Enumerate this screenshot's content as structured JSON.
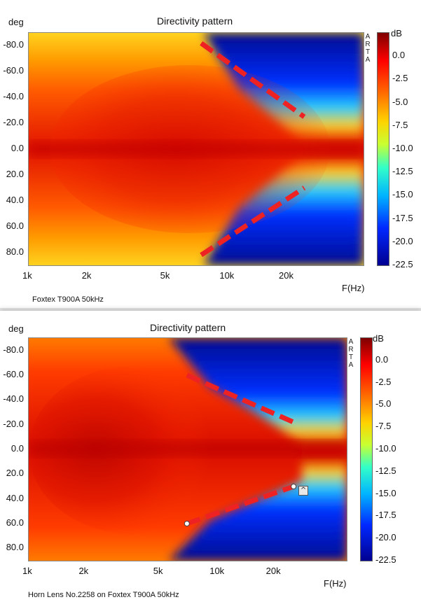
{
  "chart_data": [
    {
      "type": "heatmap",
      "title": "Directivity pattern",
      "ylabel": "deg",
      "xlabel": "F(Hz)",
      "colorbar_label": "dB",
      "watermark": [
        "A",
        "R",
        "T",
        "A"
      ],
      "caption": "Foxtex T900A 50kHz",
      "y_ticks": [
        "-80.0",
        "-60.0",
        "-40.0",
        "-20.0",
        "0.0",
        "20.0",
        "40.0",
        "60.0",
        "80.0"
      ],
      "x_ticks": [
        "1k",
        "2k",
        "5k",
        "10k",
        "20k"
      ],
      "x_tick_values": [
        1000,
        2000,
        5000,
        10000,
        20000
      ],
      "colorbar_ticks": [
        "0.0",
        "-2.5",
        "-5.0",
        "-7.5",
        "-10.0",
        "-12.5",
        "-15.0",
        "-17.5",
        "-20.0",
        "-22.5"
      ],
      "x_range": [
        1000,
        50000
      ],
      "y_range": [
        -90,
        90
      ],
      "z_range": [
        -22.5,
        2.5
      ],
      "annotations": [
        {
          "type": "dashed-line",
          "color": "#ee2222",
          "from": {
            "x": 7500,
            "y": -82
          },
          "to": {
            "x": 25000,
            "y": -25
          }
        },
        {
          "type": "dashed-line",
          "color": "#ee2222",
          "from": {
            "x": 7500,
            "y": 82
          },
          "to": {
            "x": 25000,
            "y": 30
          }
        }
      ]
    },
    {
      "type": "heatmap",
      "title": "Directivity pattern",
      "ylabel": "deg",
      "xlabel": "F(Hz)",
      "colorbar_label": "dB",
      "watermark": [
        "A",
        "R",
        "T",
        "A"
      ],
      "caption": "Horn Lens No.2258 on Foxtex T900A 50kHz",
      "y_ticks": [
        "-80.0",
        "-60.0",
        "-40.0",
        "-20.0",
        "0.0",
        "20.0",
        "40.0",
        "60.0",
        "80.0"
      ],
      "x_ticks": [
        "1k",
        "2k",
        "5k",
        "10k",
        "20k"
      ],
      "x_tick_values": [
        1000,
        2000,
        5000,
        10000,
        20000
      ],
      "colorbar_ticks": [
        "0.0",
        "-2.5",
        "-5.0",
        "-7.5",
        "-10.0",
        "-12.5",
        "-15.0",
        "-17.5",
        "-20.0",
        "-22.5"
      ],
      "x_range": [
        1000,
        50000
      ],
      "y_range": [
        -90,
        90
      ],
      "z_range": [
        -22.5,
        2.5
      ],
      "annotations": [
        {
          "type": "dashed-line",
          "color": "#ee2222",
          "from": {
            "x": 7000,
            "y": -60
          },
          "to": {
            "x": 26000,
            "y": -22
          }
        },
        {
          "type": "dashed-line",
          "color": "#ee2222",
          "from": {
            "x": 7000,
            "y": 60
          },
          "to": {
            "x": 26000,
            "y": 30
          }
        }
      ],
      "cursor_markers": [
        {
          "x": 7000,
          "y": 60
        },
        {
          "x": 26000,
          "y": 30
        }
      ]
    }
  ]
}
